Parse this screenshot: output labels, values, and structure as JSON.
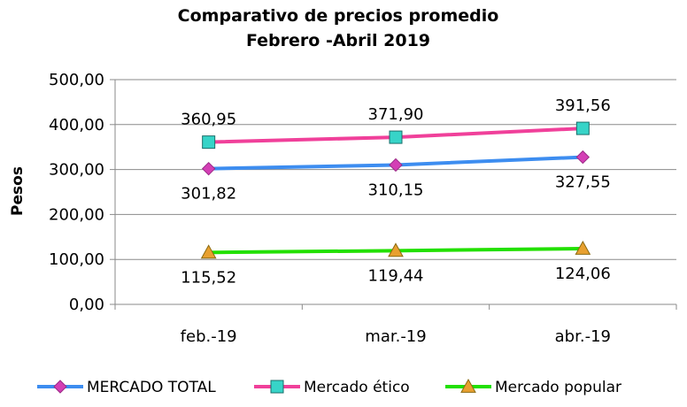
{
  "chart_data": {
    "type": "line",
    "title": "Comparativo de precios promedio",
    "subtitle": "Febrero -Abril 2019",
    "ylabel": "Pesos",
    "xlabel": "",
    "categories": [
      "feb.-19",
      "mar.-19",
      "abr.-19"
    ],
    "ylim": [
      0,
      500
    ],
    "yticks": [
      0,
      100,
      200,
      300,
      400,
      500
    ],
    "ytick_labels": [
      "0,00",
      "100,00",
      "200,00",
      "300,00",
      "400,00",
      "500,00"
    ],
    "grid": true,
    "legend_position": "bottom",
    "series": [
      {
        "name": "MERCADO TOTAL",
        "values": [
          301.82,
          310.15,
          327.55
        ],
        "labels": [
          "301,82",
          "310,15",
          "327,55"
        ],
        "label_position": "below",
        "color": "#3d8df0",
        "marker": "diamond",
        "marker_color": "#d43fb5"
      },
      {
        "name": "Mercado ético",
        "values": [
          360.95,
          371.9,
          391.56
        ],
        "labels": [
          "360,95",
          "371,90",
          "391,56"
        ],
        "label_position": "above",
        "color": "#f0409a",
        "marker": "square",
        "marker_color": "#37d4c8"
      },
      {
        "name": "Mercado popular",
        "values": [
          115.52,
          119.44,
          124.06
        ],
        "labels": [
          "115,52",
          "119,44",
          "124,06"
        ],
        "label_position": "below",
        "color": "#22e000",
        "marker": "triangle",
        "marker_color": "#e8a030"
      }
    ]
  }
}
